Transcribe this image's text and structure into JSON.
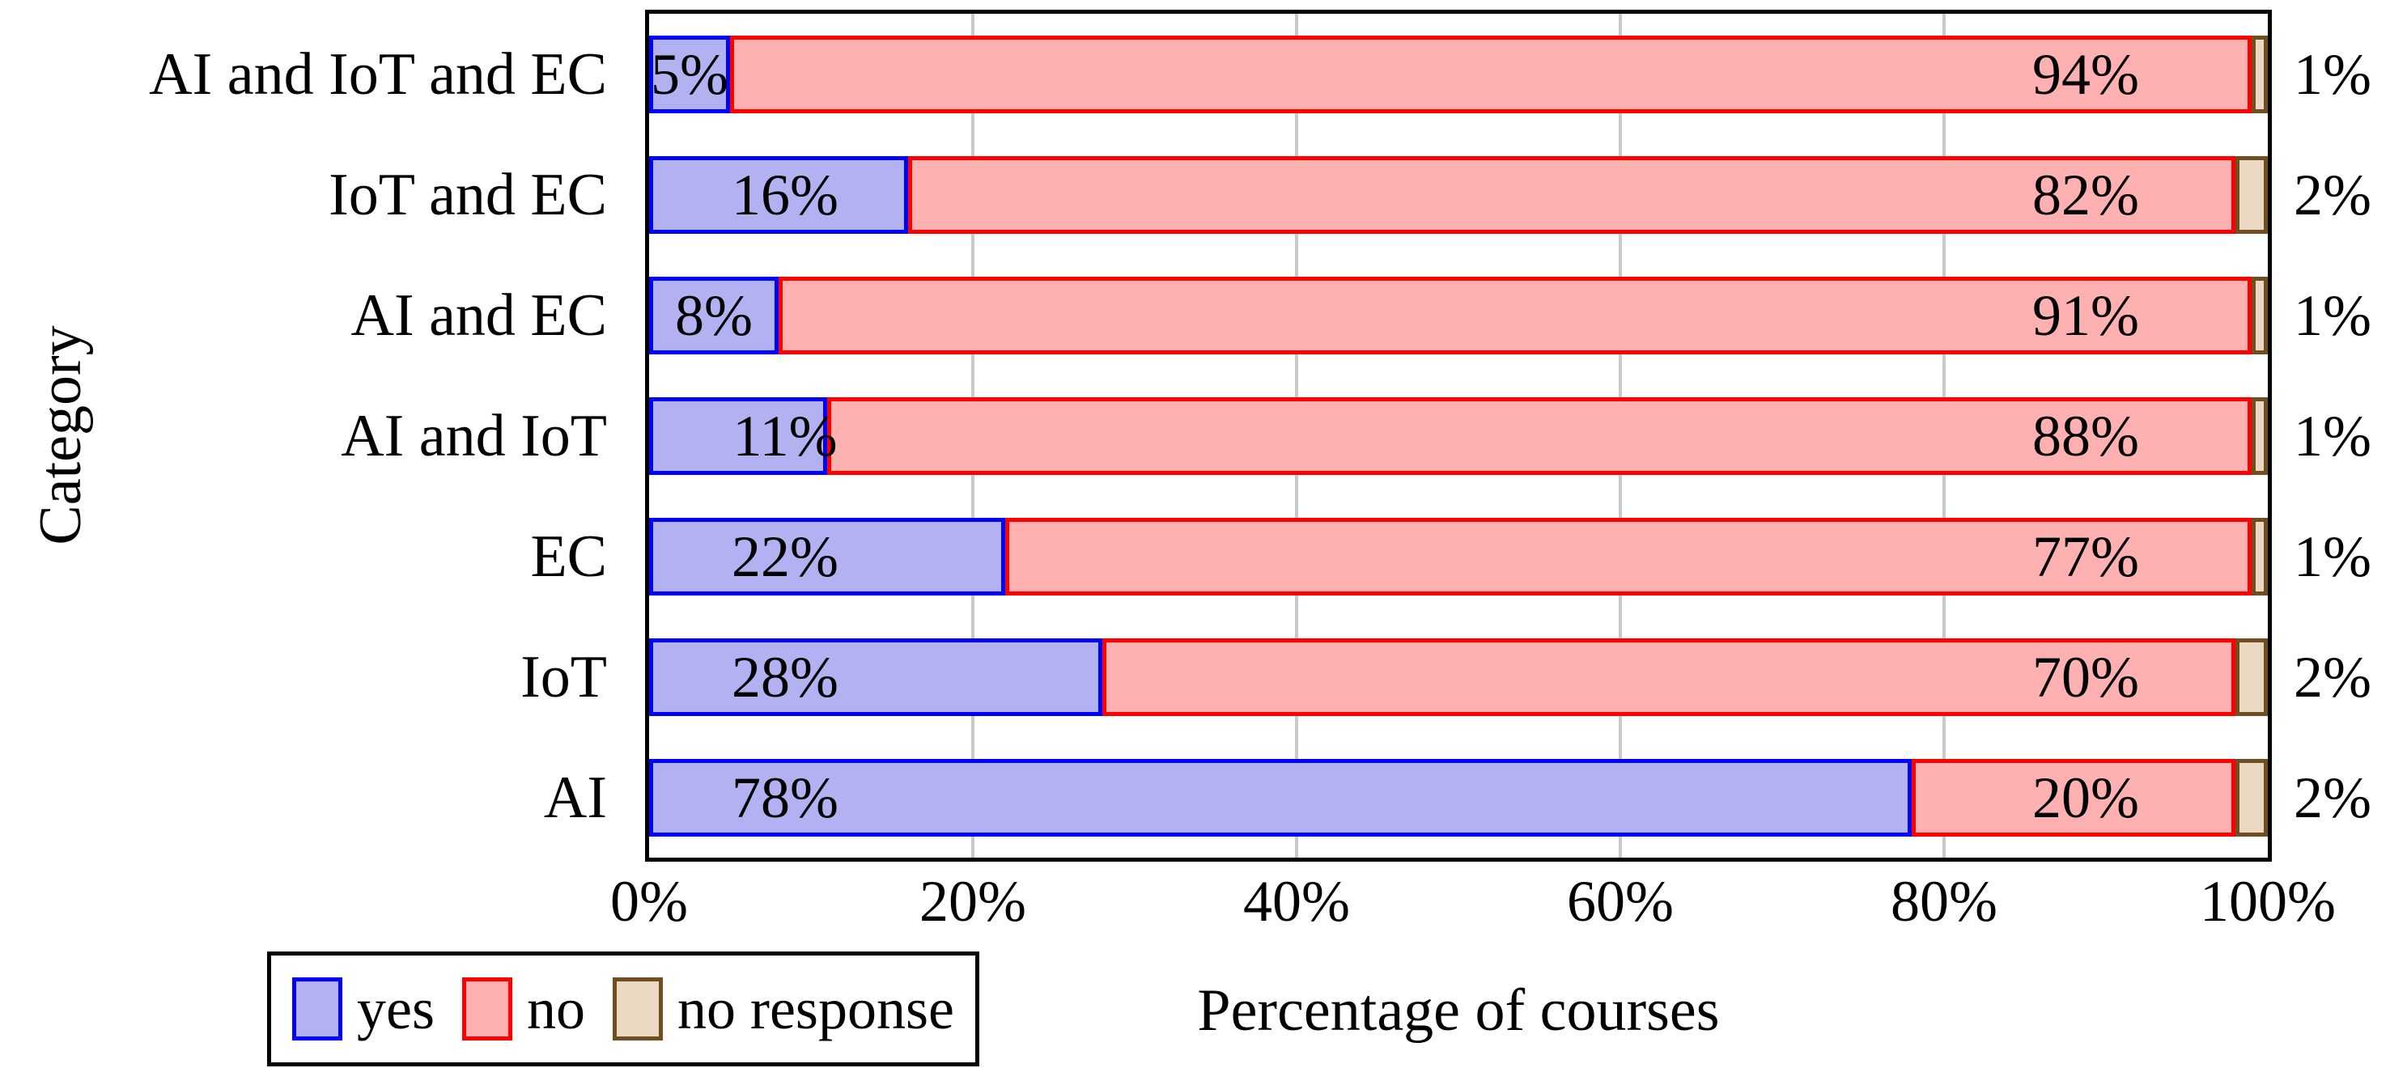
{
  "figure": {
    "ylabel": "Category",
    "xlabel": "Percentage of courses",
    "x_ticks": [
      "0%",
      "20%",
      "40%",
      "60%",
      "80%",
      "100%"
    ],
    "grid_ticks_pct": [
      20,
      40,
      60,
      80
    ],
    "colors": {
      "yes_fill": "#B2B2F2",
      "yes_stroke": "#0000FF",
      "no_fill": "#FFB0B0",
      "no_stroke": "#FE0000",
      "no_response_fill": "#EBD8C3",
      "no_response_stroke": "#714E20",
      "grid": "#C9C9C9",
      "frame": "#000000",
      "text": "#000000"
    },
    "legend": [
      {
        "key": "yes",
        "label": "yes"
      },
      {
        "key": "no",
        "label": "no"
      },
      {
        "key": "no_response",
        "label": "no response"
      }
    ],
    "rows": [
      {
        "category": "AI and IoT and EC",
        "values": {
          "yes": 5,
          "no": 94,
          "no_response": 1
        },
        "labels": {
          "yes": "5%",
          "no": "94%",
          "no_response": "1%"
        }
      },
      {
        "category": "IoT and EC",
        "values": {
          "yes": 16,
          "no": 82,
          "no_response": 2
        },
        "labels": {
          "yes": "16%",
          "no": "82%",
          "no_response": "2%"
        }
      },
      {
        "category": "AI and EC",
        "values": {
          "yes": 8,
          "no": 91,
          "no_response": 1
        },
        "labels": {
          "yes": "8%",
          "no": "91%",
          "no_response": "1%"
        }
      },
      {
        "category": "AI and IoT",
        "values": {
          "yes": 11,
          "no": 88,
          "no_response": 1
        },
        "labels": {
          "yes": "11%",
          "no": "88%",
          "no_response": "1%"
        }
      },
      {
        "category": "EC",
        "values": {
          "yes": 22,
          "no": 77,
          "no_response": 1
        },
        "labels": {
          "yes": "22%",
          "no": "77%",
          "no_response": "1%"
        }
      },
      {
        "category": "IoT",
        "values": {
          "yes": 28,
          "no": 70,
          "no_response": 2
        },
        "labels": {
          "yes": "28%",
          "no": "70%",
          "no_response": "2%"
        }
      },
      {
        "category": "AI",
        "values": {
          "yes": 78,
          "no": 20,
          "no_response": 2
        },
        "labels": {
          "yes": "78%",
          "no": "20%",
          "no_response": "2%"
        }
      }
    ]
  },
  "chart_data": {
    "type": "bar",
    "orientation": "horizontal-stacked",
    "title": "",
    "xlabel": "Percentage of courses",
    "ylabel": "Category",
    "categories_top_to_bottom": [
      "AI and IoT and EC",
      "IoT and EC",
      "AI and EC",
      "AI and IoT",
      "EC",
      "IoT",
      "AI"
    ],
    "series": [
      {
        "name": "yes",
        "values": [
          5,
          16,
          8,
          11,
          22,
          28,
          78
        ]
      },
      {
        "name": "no",
        "values": [
          94,
          82,
          91,
          88,
          77,
          70,
          20
        ]
      },
      {
        "name": "no response",
        "values": [
          1,
          2,
          1,
          1,
          1,
          2,
          2
        ]
      }
    ],
    "xlim": [
      0,
      100
    ],
    "xticks": [
      "0%",
      "20%",
      "40%",
      "60%",
      "80%",
      "100%"
    ],
    "grid": "major-vertical",
    "legend_position": "below-left"
  }
}
